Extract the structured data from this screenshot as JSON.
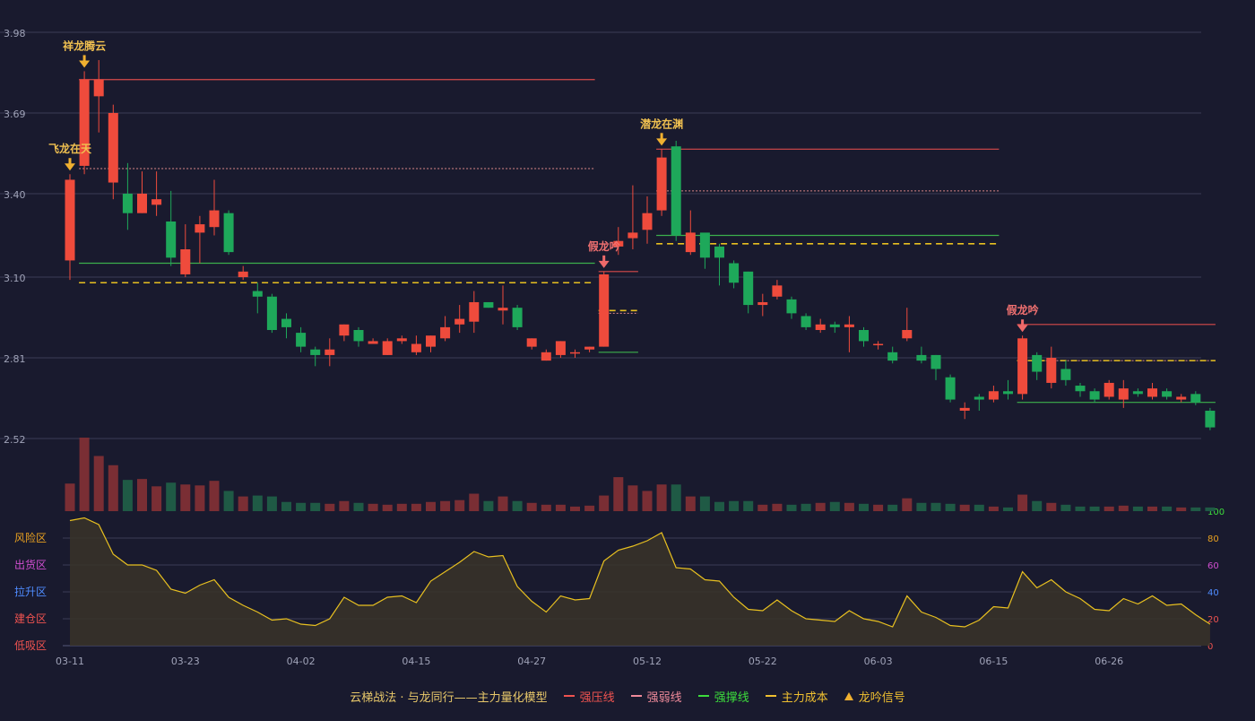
{
  "chart_data": {
    "type": "candlestick",
    "price_axis": {
      "ticks": [
        3.98,
        3.69,
        3.4,
        3.1,
        2.81,
        2.52
      ],
      "tick_labels": [
        "3.98",
        "3.69",
        "3.40",
        "3.10",
        "2.81",
        "2.52"
      ],
      "ylim": [
        2.52,
        3.98
      ]
    },
    "x_tick_labels": [
      "03-11",
      "03-23",
      "04-02",
      "04-15",
      "04-27",
      "05-12",
      "05-22",
      "06-03",
      "06-15",
      "06-26"
    ],
    "x_tick_index": [
      0,
      8,
      16,
      24,
      32,
      40,
      48,
      56,
      64,
      72
    ],
    "candles": [
      [
        3.16,
        3.45,
        3.47,
        3.09
      ],
      [
        3.5,
        3.81,
        3.84,
        3.47
      ],
      [
        3.75,
        3.81,
        3.88,
        3.62
      ],
      [
        3.44,
        3.69,
        3.72,
        3.38
      ],
      [
        3.4,
        3.33,
        3.51,
        3.27
      ],
      [
        3.33,
        3.4,
        3.48,
        3.33
      ],
      [
        3.36,
        3.38,
        3.48,
        3.32
      ],
      [
        3.3,
        3.17,
        3.41,
        3.14
      ],
      [
        3.11,
        3.2,
        3.29,
        3.1
      ],
      [
        3.26,
        3.29,
        3.32,
        3.15
      ],
      [
        3.28,
        3.34,
        3.45,
        3.25
      ],
      [
        3.33,
        3.19,
        3.34,
        3.18
      ],
      [
        3.1,
        3.12,
        3.14,
        3.09
      ],
      [
        3.05,
        3.03,
        3.08,
        2.97
      ],
      [
        3.03,
        2.91,
        3.04,
        2.9
      ],
      [
        2.95,
        2.92,
        2.97,
        2.88
      ],
      [
        2.9,
        2.85,
        2.92,
        2.83
      ],
      [
        2.84,
        2.82,
        2.85,
        2.78
      ],
      [
        2.82,
        2.84,
        2.88,
        2.78
      ],
      [
        2.89,
        2.93,
        2.93,
        2.87
      ],
      [
        2.91,
        2.87,
        2.92,
        2.85
      ],
      [
        2.86,
        2.87,
        2.88,
        2.86
      ],
      [
        2.82,
        2.87,
        2.88,
        2.82
      ],
      [
        2.87,
        2.88,
        2.89,
        2.86
      ],
      [
        2.83,
        2.86,
        2.89,
        2.82
      ],
      [
        2.85,
        2.89,
        2.89,
        2.83
      ],
      [
        2.88,
        2.92,
        2.96,
        2.87
      ],
      [
        2.93,
        2.95,
        3.0,
        2.9
      ],
      [
        2.94,
        3.01,
        3.05,
        2.9
      ],
      [
        3.01,
        2.99,
        3.01,
        2.99
      ],
      [
        2.98,
        2.99,
        3.07,
        2.93
      ],
      [
        2.99,
        2.92,
        3.0,
        2.91
      ],
      [
        2.85,
        2.88,
        2.88,
        2.84
      ],
      [
        2.8,
        2.83,
        2.84,
        2.8
      ],
      [
        2.82,
        2.87,
        2.87,
        2.81
      ],
      [
        2.83,
        2.83,
        2.84,
        2.81
      ],
      [
        2.84,
        2.85,
        2.85,
        2.83
      ],
      [
        2.85,
        3.11,
        3.12,
        2.85
      ],
      [
        3.21,
        3.23,
        3.28,
        3.18
      ],
      [
        3.24,
        3.26,
        3.43,
        3.2
      ],
      [
        3.27,
        3.33,
        3.39,
        3.22
      ],
      [
        3.34,
        3.53,
        3.56,
        3.32
      ],
      [
        3.57,
        3.25,
        3.59,
        3.23
      ],
      [
        3.19,
        3.26,
        3.34,
        3.18
      ],
      [
        3.26,
        3.17,
        3.25,
        3.13
      ],
      [
        3.21,
        3.17,
        3.22,
        3.07
      ],
      [
        3.15,
        3.08,
        3.16,
        3.06
      ],
      [
        3.12,
        3.0,
        3.12,
        2.97
      ],
      [
        3.0,
        3.01,
        3.04,
        2.96
      ],
      [
        3.03,
        3.07,
        3.09,
        3.02
      ],
      [
        3.02,
        2.97,
        3.03,
        2.95
      ],
      [
        2.96,
        2.92,
        2.97,
        2.91
      ],
      [
        2.91,
        2.93,
        2.95,
        2.9
      ],
      [
        2.93,
        2.92,
        2.94,
        2.9
      ],
      [
        2.92,
        2.93,
        2.96,
        2.83
      ],
      [
        2.91,
        2.87,
        2.92,
        2.85
      ],
      [
        2.86,
        2.86,
        2.87,
        2.84
      ],
      [
        2.83,
        2.8,
        2.85,
        2.79
      ],
      [
        2.88,
        2.91,
        2.99,
        2.87
      ],
      [
        2.82,
        2.8,
        2.85,
        2.79
      ],
      [
        2.82,
        2.77,
        2.82,
        2.73
      ],
      [
        2.74,
        2.66,
        2.75,
        2.65
      ],
      [
        2.62,
        2.63,
        2.65,
        2.59
      ],
      [
        2.67,
        2.66,
        2.68,
        2.62
      ],
      [
        2.66,
        2.69,
        2.71,
        2.65
      ],
      [
        2.69,
        2.68,
        2.73,
        2.66
      ],
      [
        2.68,
        2.88,
        2.89,
        2.66
      ],
      [
        2.82,
        2.76,
        2.83,
        2.73
      ],
      [
        2.72,
        2.81,
        2.85,
        2.7
      ],
      [
        2.77,
        2.73,
        2.8,
        2.71
      ],
      [
        2.71,
        2.69,
        2.72,
        2.67
      ],
      [
        2.69,
        2.66,
        2.7,
        2.65
      ],
      [
        2.67,
        2.72,
        2.73,
        2.66
      ],
      [
        2.66,
        2.7,
        2.73,
        2.63
      ],
      [
        2.69,
        2.68,
        2.7,
        2.67
      ],
      [
        2.67,
        2.7,
        2.72,
        2.66
      ],
      [
        2.69,
        2.67,
        2.7,
        2.66
      ],
      [
        2.66,
        2.67,
        2.68,
        2.65
      ],
      [
        2.68,
        2.65,
        2.69,
        2.64
      ],
      [
        2.62,
        2.56,
        2.63,
        2.55
      ]
    ],
    "volume": [
      30,
      80,
      60,
      50,
      34,
      35,
      27,
      31,
      29,
      28,
      33,
      22,
      16,
      17,
      16,
      10,
      9,
      9,
      8,
      11,
      9,
      8,
      7,
      8,
      8,
      10,
      11,
      12,
      19,
      11,
      16,
      11,
      9,
      7,
      7,
      5,
      6,
      17,
      37,
      28,
      22,
      29,
      29,
      16,
      16,
      10,
      11,
      11,
      7,
      8,
      7,
      8,
      9,
      10,
      9,
      8,
      7,
      7,
      14,
      9,
      9,
      8,
      7,
      7,
      5,
      4,
      18,
      11,
      9,
      7,
      5,
      5,
      5,
      6,
      5,
      5,
      5,
      4,
      4,
      4
    ],
    "volume_ylim": [
      0,
      80
    ],
    "oscillator": {
      "values": [
        93,
        95,
        90,
        68,
        60,
        60,
        56,
        42,
        39,
        45,
        49,
        36,
        30,
        25,
        19,
        20,
        16,
        15,
        20,
        36,
        30,
        30,
        36,
        37,
        32,
        48,
        55,
        62,
        70,
        66,
        67,
        44,
        33,
        25,
        37,
        34,
        35,
        63,
        71,
        74,
        78,
        84,
        58,
        57,
        49,
        48,
        36,
        27,
        26,
        34,
        26,
        20,
        19,
        18,
        26,
        20,
        18,
        14,
        37,
        25,
        21,
        15,
        14,
        19,
        29,
        28,
        55,
        43,
        49,
        40,
        35,
        27,
        26,
        35,
        31,
        37,
        30,
        31,
        23,
        16
      ],
      "ylim": [
        0,
        100
      ],
      "ticks": [
        0,
        20,
        40,
        60,
        80,
        100
      ],
      "tick_labels": [
        "0",
        "20",
        "40",
        "60",
        "80",
        "100"
      ],
      "tick_colors": [
        "#ef5350",
        "#ef5350",
        "#4f8cff",
        "#d04ed0",
        "#e8a020",
        "#3cdc3c"
      ],
      "zones": [
        {
          "label": "风险区",
          "color": "#e8a020"
        },
        {
          "label": "出货区",
          "color": "#d04ed0"
        },
        {
          "label": "拉升区",
          "color": "#4f8cff"
        },
        {
          "label": "建仓区",
          "color": "#ef5350"
        },
        {
          "label": "低吸区",
          "color": "#ef5350"
        }
      ]
    },
    "signals": [
      {
        "index": 0,
        "label": "飞龙在天",
        "price": 3.47,
        "color": "#f0b030",
        "text_color": "#f0c050"
      },
      {
        "index": 1,
        "label": "祥龙腾云",
        "price": 3.84,
        "color": "#f0b030",
        "text_color": "#f0c050"
      },
      {
        "index": 37,
        "label": "假龙吟",
        "price": 3.12,
        "color": "#ef6a6a",
        "text_color": "#f07070"
      },
      {
        "index": 41,
        "label": "潜龙在渊",
        "price": 3.56,
        "color": "#f0b030",
        "text_color": "#f0c050"
      },
      {
        "index": 66,
        "label": "假龙吟",
        "price": 2.89,
        "color": "#ef6a6a",
        "text_color": "#f07070"
      }
    ],
    "level_lines": [
      {
        "kind": "strong_resist",
        "from": 1,
        "to": 36,
        "price": 3.81
      },
      {
        "kind": "weak_resist",
        "from": 1,
        "to": 36,
        "price": 3.49
      },
      {
        "kind": "support",
        "from": 1,
        "to": 36,
        "price": 3.15
      },
      {
        "kind": "cost",
        "from": 1,
        "to": 36,
        "price": 3.08
      },
      {
        "kind": "strong_resist",
        "from": 37,
        "to": 39,
        "price": 3.12
      },
      {
        "kind": "weak_resist",
        "from": 37,
        "to": 39,
        "price": 2.97
      },
      {
        "kind": "cost",
        "from": 37,
        "to": 39,
        "price": 2.98
      },
      {
        "kind": "support",
        "from": 37,
        "to": 39,
        "price": 2.83
      },
      {
        "kind": "strong_resist",
        "from": 41,
        "to": 64,
        "price": 3.56
      },
      {
        "kind": "weak_resist",
        "from": 41,
        "to": 64,
        "price": 3.41
      },
      {
        "kind": "support",
        "from": 41,
        "to": 64,
        "price": 3.25
      },
      {
        "kind": "cost",
        "from": 41,
        "to": 64,
        "price": 3.22
      },
      {
        "kind": "strong_resist",
        "from": 66,
        "to": 79,
        "price": 2.93
      },
      {
        "kind": "weak_resist",
        "from": 66,
        "to": 79,
        "price": 2.8
      },
      {
        "kind": "cost",
        "from": 66,
        "to": 79,
        "price": 2.8
      },
      {
        "kind": "support",
        "from": 66,
        "to": 79,
        "price": 2.65
      }
    ],
    "colors": {
      "up": "#ef4b3c",
      "down": "#1ea85a",
      "vol_up": "#7a2e34",
      "vol_down": "#1f5a45",
      "strong_resist": "#d94a4a",
      "weak_resist": "#e08a8a",
      "support": "#3cb04c",
      "cost": "#e8c020",
      "osc_line": "#e8c020",
      "osc_fill": "#3a3428",
      "grid": "#3a3c55",
      "axis_text": "#a0a3b8"
    },
    "grid": true
  },
  "legend": {
    "title": "云梯战法 · 与龙同行——主力量化模型",
    "items": [
      {
        "label": "强压线",
        "color": "#ef5350",
        "style": "solid"
      },
      {
        "label": "强弱线",
        "color": "#ef8a9a",
        "style": "dashed"
      },
      {
        "label": "强撑线",
        "color": "#3cdc3c",
        "style": "solid"
      },
      {
        "label": "主力成本",
        "color": "#f0c030",
        "style": "dashed"
      },
      {
        "label": "龙吟信号",
        "color": "#f0b030",
        "style": "triangle"
      }
    ]
  }
}
